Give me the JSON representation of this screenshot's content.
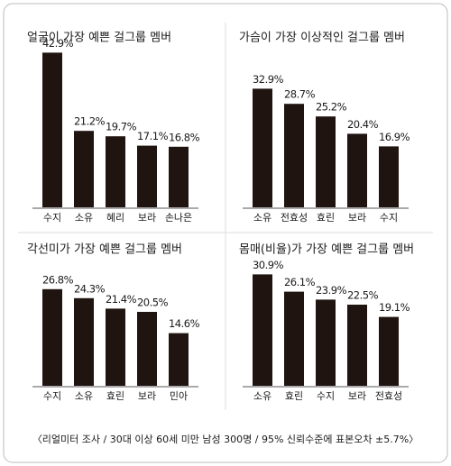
{
  "chart_data": [
    {
      "type": "bar",
      "title": "얼굴이 가장 예쁜 걸그룹 멤버",
      "categories": [
        "수지",
        "소유",
        "혜리",
        "보라",
        "손나은"
      ],
      "values": [
        42.9,
        21.2,
        19.7,
        17.1,
        16.8
      ],
      "value_labels": [
        "42.9%",
        "21.2%",
        "19.7%",
        "17.1%",
        "16.8%"
      ],
      "color": "#1f1410"
    },
    {
      "type": "bar",
      "title": "가슴이 가장 이상적인 걸그룹 멤버",
      "categories": [
        "소유",
        "전효성",
        "효린",
        "보라",
        "수지"
      ],
      "values": [
        32.9,
        28.7,
        25.2,
        20.4,
        16.9
      ],
      "value_labels": [
        "32.9%",
        "28.7%",
        "25.2%",
        "20.4%",
        "16.9%"
      ],
      "color": "#1f1410"
    },
    {
      "type": "bar",
      "title": "각선미가 가장 예쁜 걸그룹 멤버",
      "categories": [
        "수지",
        "소유",
        "효린",
        "보라",
        "민아"
      ],
      "values": [
        26.8,
        24.3,
        21.4,
        20.5,
        14.6
      ],
      "value_labels": [
        "26.8%",
        "24.3%",
        "21.4%",
        "20.5%",
        "14.6%"
      ],
      "color": "#1f1410"
    },
    {
      "type": "bar",
      "title": "몸매(비율)가 가장 예쁜 걸그룹 멤버",
      "categories": [
        "소유",
        "효린",
        "수지",
        "보라",
        "전효성"
      ],
      "values": [
        30.9,
        26.1,
        23.9,
        22.5,
        19.1
      ],
      "value_labels": [
        "30.9%",
        "26.1%",
        "23.9%",
        "22.5%",
        "19.1%"
      ],
      "color": "#1f1410"
    }
  ],
  "footnote": "〈리얼미터 조사 / 30대 이상 60세 미만 남성 300명 / 95% 신뢰수준에 표본오차 ±5.7%〉"
}
